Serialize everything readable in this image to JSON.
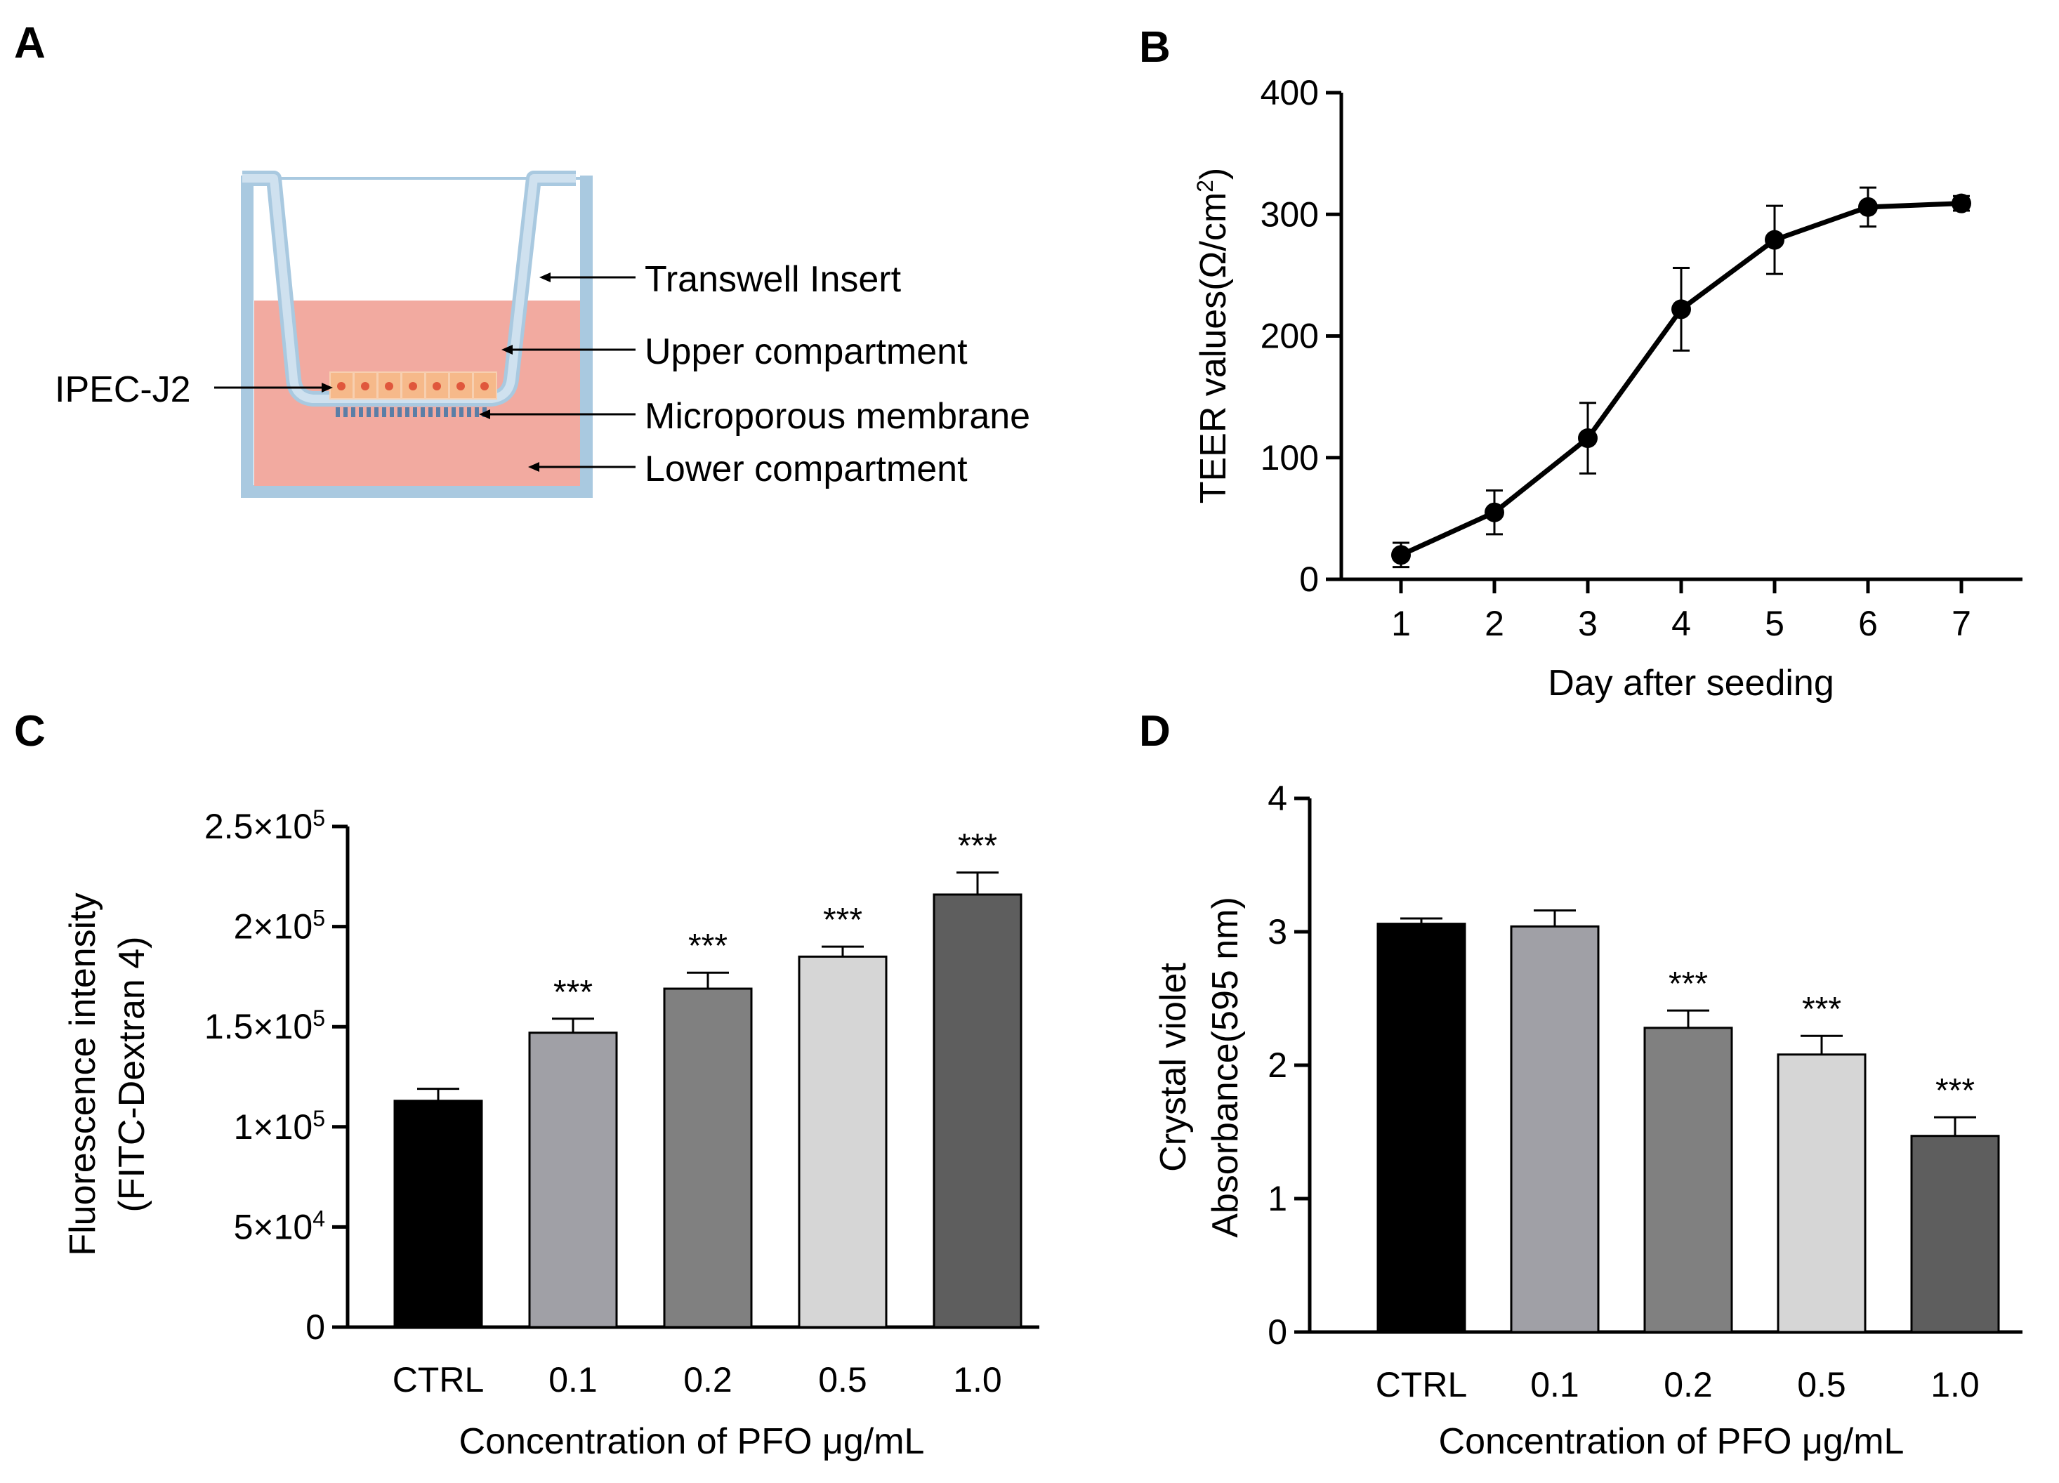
{
  "panels": {
    "A": {
      "letter": "A",
      "labels": {
        "insert": "Transwell Insert",
        "upper": "Upper compartment",
        "cells": "IPEC-J2",
        "membrane": "Microporous membrane",
        "lower": "Lower compartment"
      },
      "colors": {
        "wall": "#a9c9e0",
        "wall_fill": "#cfe1ef",
        "medium": "#f2aaa0",
        "cells": "#f6b98a",
        "nucleus": "#e0573c",
        "pores": "#5a7ea6"
      }
    },
    "B": {
      "letter": "B"
    },
    "C": {
      "letter": "C"
    },
    "D": {
      "letter": "D"
    }
  },
  "chart_data": [
    {
      "panel": "B",
      "type": "line",
      "x": [
        1,
        2,
        3,
        4,
        5,
        6,
        7
      ],
      "values": [
        20,
        55,
        116,
        222,
        279,
        306,
        309
      ],
      "errors": [
        10,
        18,
        29,
        34,
        28,
        16,
        6
      ],
      "xlabel": "Day after seeding",
      "ylabel_text": "TEER values(Ω/cm",
      "ylabel_sup": "2",
      "ylabel_close": ")",
      "ylim": [
        0,
        400
      ],
      "yticks": [
        0,
        100,
        200,
        300,
        400
      ],
      "ytick_labels": [
        "0",
        "100",
        "200",
        "300",
        "400"
      ],
      "xtick_labels": [
        "1",
        "2",
        "3",
        "4",
        "5",
        "6",
        "7"
      ],
      "color": "#000000"
    },
    {
      "panel": "C",
      "type": "bar",
      "categories": [
        "CTRL",
        "0.1",
        "0.2",
        "0.5",
        "1.0"
      ],
      "values": [
        113000,
        147000,
        169000,
        185000,
        216000
      ],
      "errors": [
        6000,
        7000,
        8000,
        5000,
        11000
      ],
      "significance": [
        "",
        "***",
        "***",
        "***",
        "***"
      ],
      "colors": [
        "#000000",
        "#a0a0a6",
        "#808080",
        "#d6d6d6",
        "#5e5e5e"
      ],
      "xlabel": "Concentration of PFO μg/mL",
      "ylabel_line1": "Fluorescence intensity",
      "ylabel_line2": "(FITC-Dextran 4)",
      "ylim": [
        0,
        250000
      ],
      "yticks": [
        0,
        50000,
        100000,
        150000,
        200000,
        250000
      ],
      "ytick_labels": [
        {
          "base": "0",
          "exp": ""
        },
        {
          "base": "5×10",
          "exp": "4"
        },
        {
          "base": "1×10",
          "exp": "5"
        },
        {
          "base": "1.5×10",
          "exp": "5"
        },
        {
          "base": "2×10",
          "exp": "5"
        },
        {
          "base": "2.5×10",
          "exp": "5"
        }
      ]
    },
    {
      "panel": "D",
      "type": "bar",
      "categories": [
        "CTRL",
        "0.1",
        "0.2",
        "0.5",
        "1.0"
      ],
      "values": [
        3.06,
        3.04,
        2.28,
        2.08,
        1.47
      ],
      "errors": [
        0.04,
        0.12,
        0.13,
        0.14,
        0.14
      ],
      "significance": [
        "",
        "",
        "***",
        "***",
        "***"
      ],
      "colors": [
        "#000000",
        "#a0a0a6",
        "#808080",
        "#d6d6d6",
        "#5e5e5e"
      ],
      "xlabel": "Concentration of PFO μg/mL",
      "ylabel_line1": "Crystal violet",
      "ylabel_line2": "Absorbance(595 nm)",
      "ylim": [
        0,
        4
      ],
      "yticks": [
        0,
        1,
        2,
        3,
        4
      ],
      "ytick_labels": [
        "0",
        "1",
        "2",
        "3",
        "4"
      ]
    }
  ]
}
